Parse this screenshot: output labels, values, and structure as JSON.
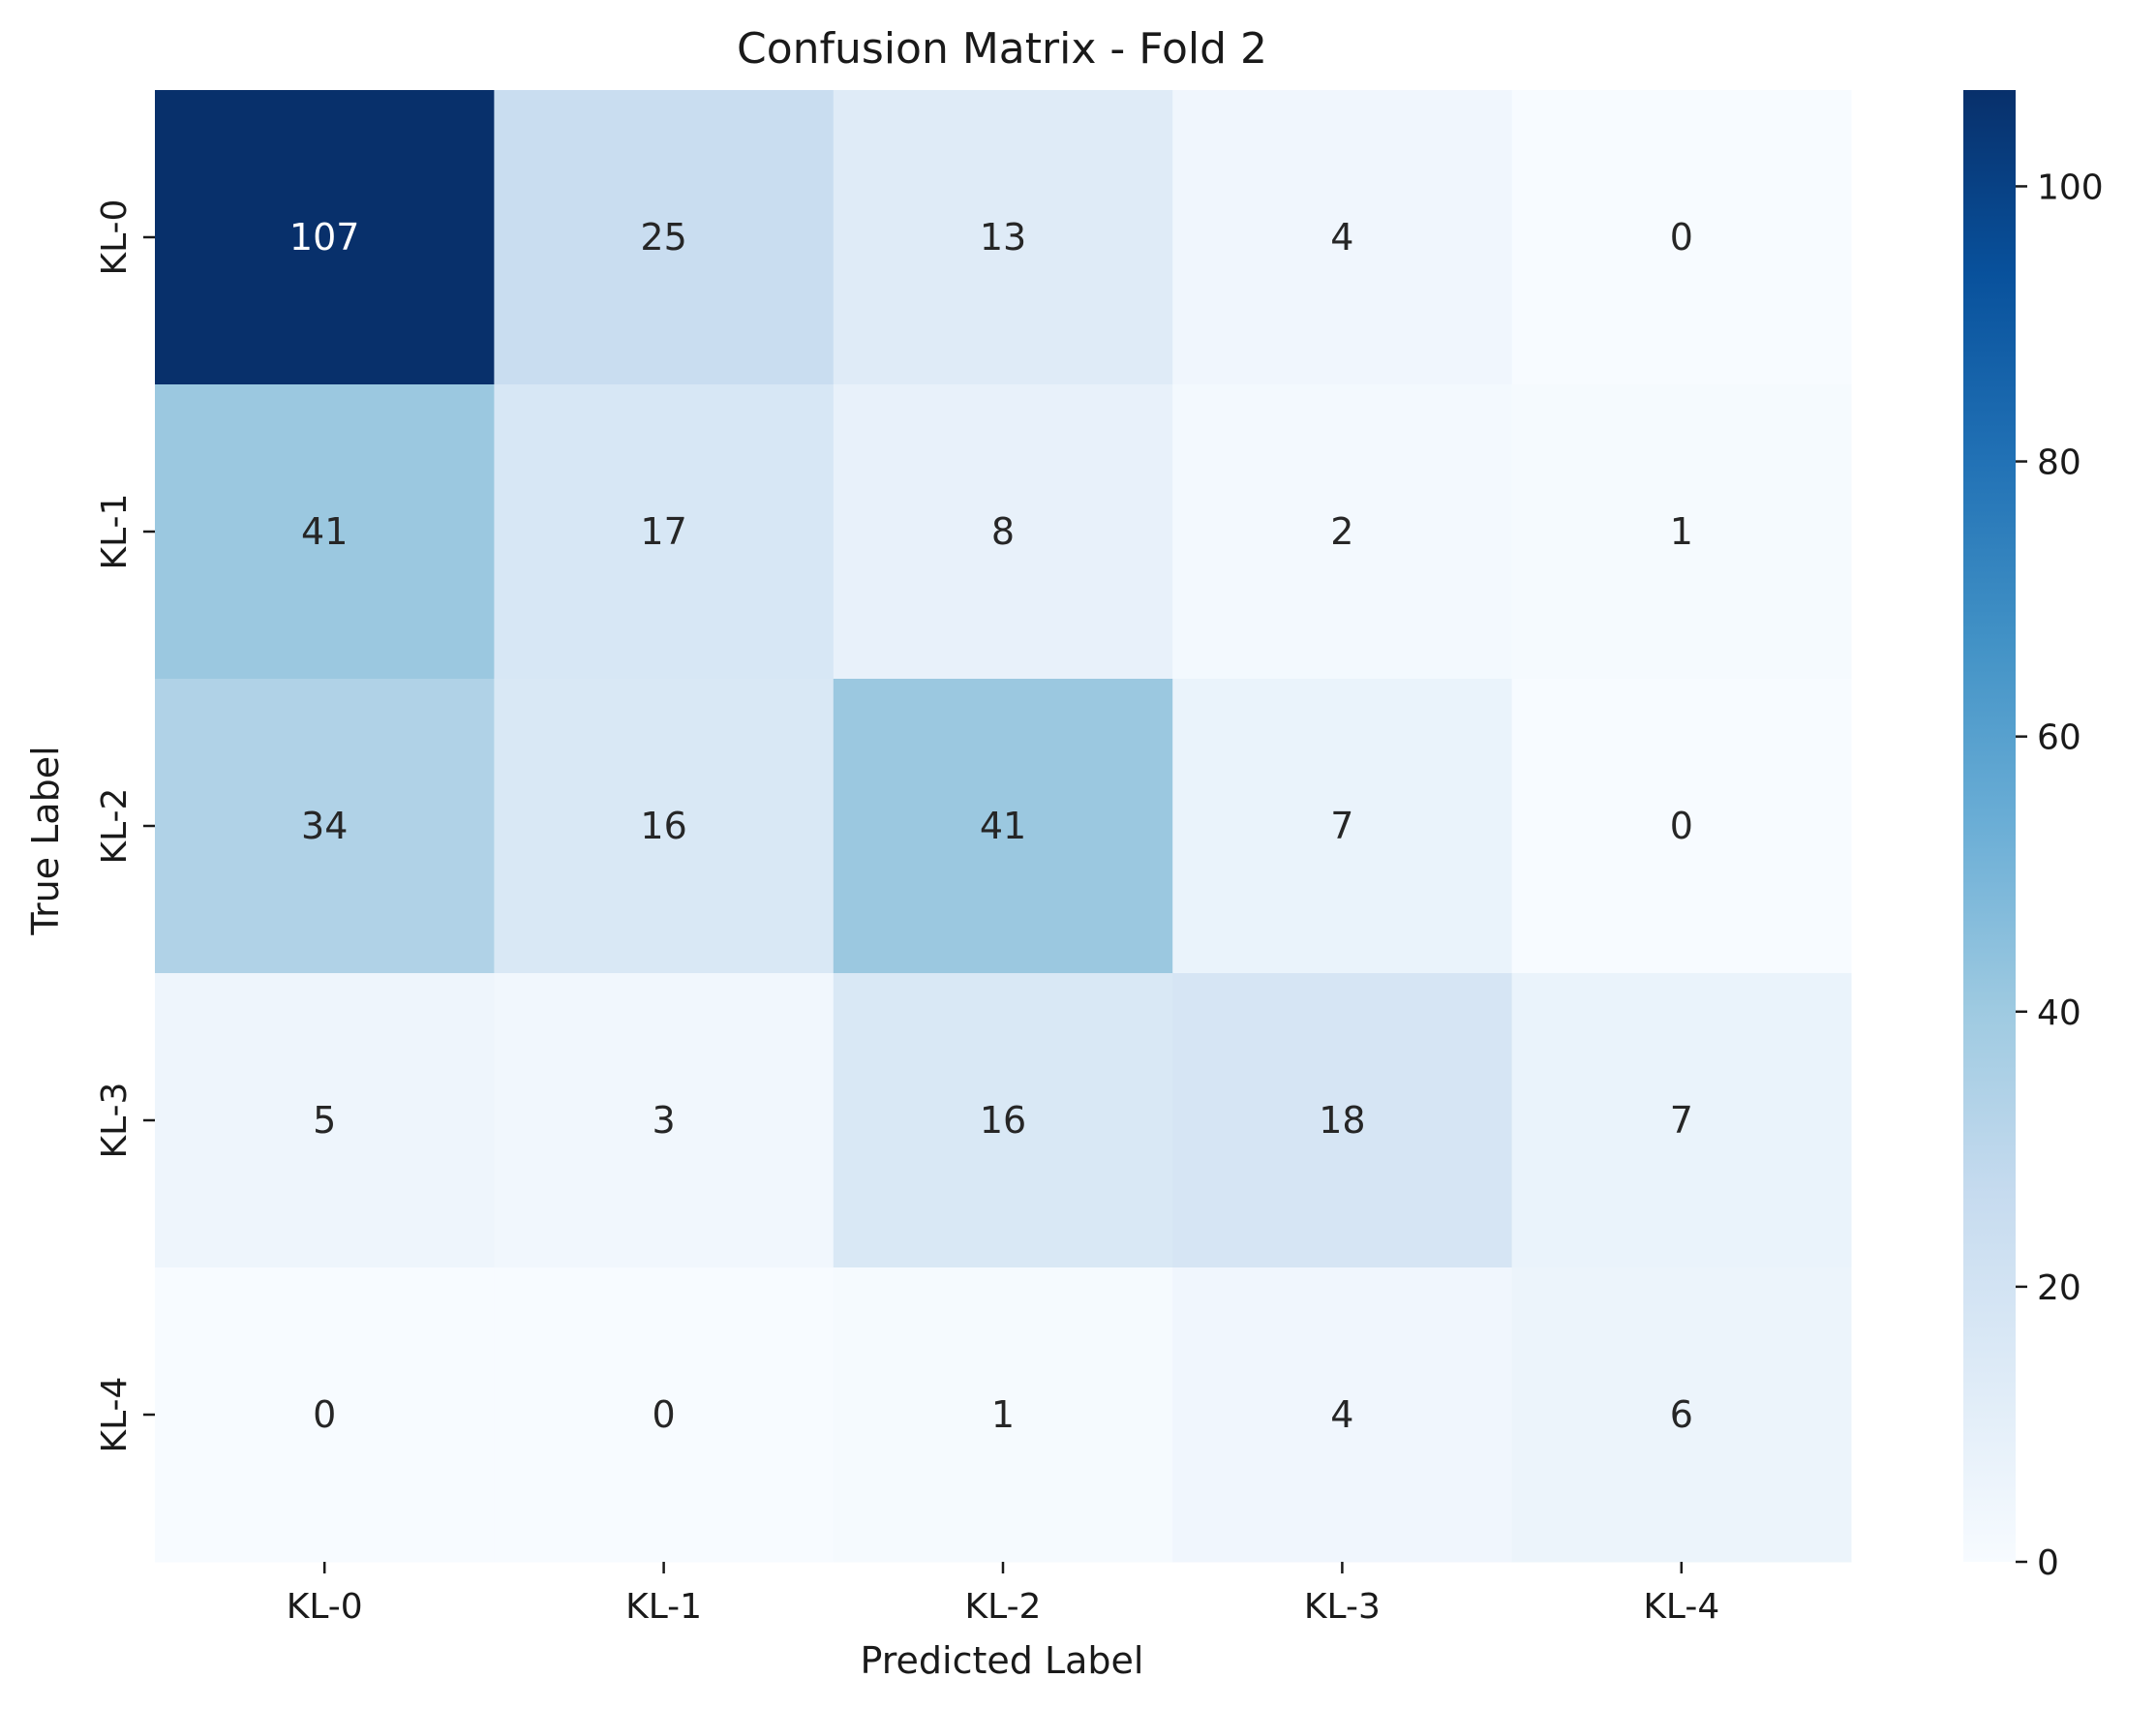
{
  "chart_data": {
    "type": "heatmap",
    "title": "Confusion Matrix - Fold 2",
    "xlabel": "Predicted Label",
    "ylabel": "True Label",
    "x_categories": [
      "KL-0",
      "KL-1",
      "KL-2",
      "KL-3",
      "KL-4"
    ],
    "y_categories": [
      "KL-0",
      "KL-1",
      "KL-2",
      "KL-3",
      "KL-4"
    ],
    "matrix": [
      [
        107,
        25,
        13,
        4,
        0
      ],
      [
        41,
        17,
        8,
        2,
        1
      ],
      [
        34,
        16,
        41,
        7,
        0
      ],
      [
        5,
        3,
        16,
        18,
        7
      ],
      [
        0,
        0,
        1,
        4,
        6
      ]
    ],
    "colormap": "Blues",
    "colorbar": {
      "vmin": 0,
      "vmax": 107,
      "ticks": [
        0,
        20,
        40,
        60,
        80,
        100
      ]
    }
  }
}
